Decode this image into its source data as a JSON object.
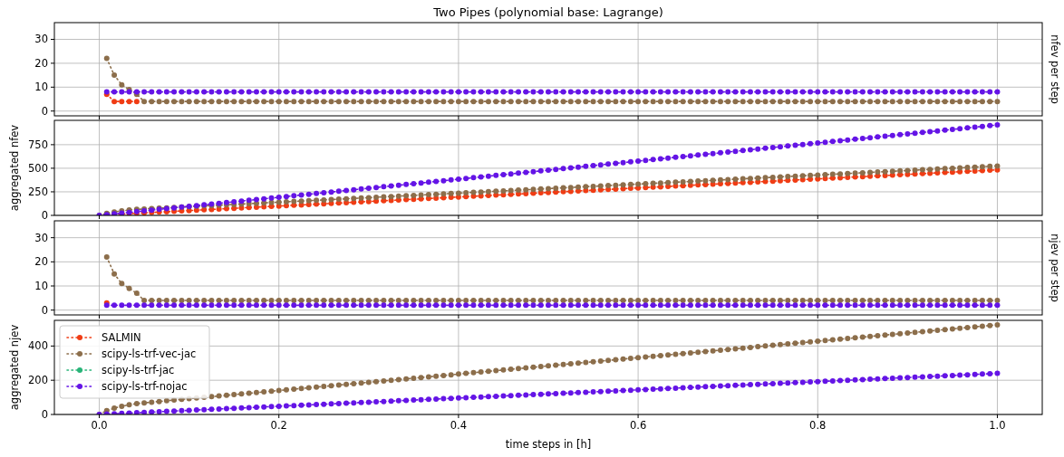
{
  "chart_data": [
    {
      "type": "line",
      "title": "Two Pipes (polynomial base: Lagrange)",
      "y2label": "nfev per step",
      "xlim": [
        -0.05,
        1.05
      ],
      "xticks": [
        0,
        0.2,
        0.4,
        0.6,
        0.8,
        1
      ],
      "ylim": [
        -2,
        37
      ],
      "yticks": [
        0,
        10,
        20,
        30
      ],
      "grid": true,
      "marker": "circle",
      "line_style": "dotted",
      "tick_labels": "y",
      "x": [
        0.0083,
        0.0167,
        0.025,
        0.0333,
        0.0417,
        0.05,
        0.0583,
        0.0667,
        0.075,
        0.0833,
        0.0917,
        0.1,
        0.1083,
        0.1167,
        0.125,
        0.1333,
        0.1417,
        0.15,
        0.1583,
        0.1667,
        0.175,
        0.1833,
        0.1917,
        0.2,
        0.2083,
        0.2167,
        0.225,
        0.2333,
        0.2417,
        0.25,
        0.2583,
        0.2667,
        0.275,
        0.2833,
        0.2917,
        0.3,
        0.3083,
        0.3167,
        0.325,
        0.3333,
        0.3417,
        0.35,
        0.3583,
        0.3667,
        0.375,
        0.3833,
        0.3917,
        0.4,
        0.4083,
        0.4167,
        0.425,
        0.4333,
        0.4417,
        0.45,
        0.4583,
        0.4667,
        0.475,
        0.4833,
        0.4917,
        0.5,
        0.5083,
        0.5167,
        0.525,
        0.5333,
        0.5417,
        0.55,
        0.5583,
        0.5667,
        0.575,
        0.5833,
        0.5917,
        0.6,
        0.6083,
        0.6167,
        0.625,
        0.6333,
        0.6417,
        0.65,
        0.6583,
        0.6667,
        0.675,
        0.6833,
        0.6917,
        0.7,
        0.7083,
        0.7167,
        0.725,
        0.7333,
        0.7417,
        0.75,
        0.7583,
        0.7667,
        0.775,
        0.7833,
        0.7917,
        0.8,
        0.8083,
        0.8167,
        0.825,
        0.8333,
        0.8417,
        0.85,
        0.8583,
        0.8667,
        0.875,
        0.8833,
        0.8917,
        0.9,
        0.9083,
        0.9167,
        0.925,
        0.9333,
        0.9417,
        0.95,
        0.9583,
        0.9667,
        0.975,
        0.9833,
        0.9917,
        1
      ],
      "series": [
        {
          "color": "#f03c14",
          "values": [
            7,
            4,
            4,
            4,
            4,
            null,
            null,
            null,
            null,
            null,
            null,
            null,
            null,
            null,
            null,
            null,
            null,
            null,
            null,
            null,
            null,
            null,
            null,
            null,
            null,
            null,
            null,
            null,
            null,
            null,
            null,
            null,
            null,
            null,
            null,
            null,
            null,
            null,
            null,
            null,
            null,
            null,
            null,
            null,
            null,
            null,
            null,
            null,
            null,
            null,
            null,
            null,
            null,
            null,
            null,
            null,
            null,
            null,
            null,
            null,
            null,
            null,
            null,
            null,
            null,
            null,
            null,
            null,
            null,
            null,
            null,
            null,
            null,
            null,
            null,
            null,
            null,
            null,
            null,
            null,
            null,
            null,
            null,
            null,
            null,
            null,
            null,
            null,
            null,
            null,
            null,
            null,
            null,
            null,
            null,
            null,
            null,
            null,
            null,
            null,
            null,
            null,
            null,
            null,
            null,
            null,
            null,
            null,
            null,
            null,
            null,
            null,
            null,
            null,
            null,
            null,
            null,
            null,
            null,
            null
          ]
        },
        {
          "color": "#8c6e4b",
          "values": [
            22,
            15,
            11,
            9,
            7,
            4,
            4,
            4,
            4,
            4,
            4,
            4,
            4,
            4,
            4,
            4,
            4,
            4,
            4,
            4,
            4,
            4,
            4,
            4,
            4,
            4,
            4,
            4,
            4,
            4,
            4,
            4,
            4,
            4,
            4,
            4,
            4,
            4,
            4,
            4,
            4,
            4,
            4,
            4,
            4,
            4,
            4,
            4,
            4,
            4,
            4,
            4,
            4,
            4,
            4,
            4,
            4,
            4,
            4,
            4,
            4,
            4,
            4,
            4,
            4,
            4,
            4,
            4,
            4,
            4,
            4,
            4,
            4,
            4,
            4,
            4,
            4,
            4,
            4,
            4,
            4,
            4,
            4,
            4,
            4,
            4,
            4,
            4,
            4,
            4,
            4,
            4,
            4,
            4,
            4,
            4,
            4,
            4,
            4,
            4,
            4,
            4,
            4,
            4,
            4,
            4,
            4,
            4,
            4,
            4,
            4,
            4,
            4,
            4,
            4,
            4,
            4,
            4,
            4,
            4
          ]
        },
        {
          "color": "#6414e6",
          "values": [
            8,
            8,
            8,
            8,
            8,
            8,
            8,
            8,
            8,
            8,
            8,
            8,
            8,
            8,
            8,
            8,
            8,
            8,
            8,
            8,
            8,
            8,
            8,
            8,
            8,
            8,
            8,
            8,
            8,
            8,
            8,
            8,
            8,
            8,
            8,
            8,
            8,
            8,
            8,
            8,
            8,
            8,
            8,
            8,
            8,
            8,
            8,
            8,
            8,
            8,
            8,
            8,
            8,
            8,
            8,
            8,
            8,
            8,
            8,
            8,
            8,
            8,
            8,
            8,
            8,
            8,
            8,
            8,
            8,
            8,
            8,
            8,
            8,
            8,
            8,
            8,
            8,
            8,
            8,
            8,
            8,
            8,
            8,
            8,
            8,
            8,
            8,
            8,
            8,
            8,
            8,
            8,
            8,
            8,
            8,
            8,
            8,
            8,
            8,
            8,
            8,
            8,
            8,
            8,
            8,
            8,
            8,
            8,
            8,
            8,
            8,
            8,
            8,
            8,
            8,
            8,
            8,
            8,
            8,
            8
          ]
        }
      ]
    },
    {
      "type": "line",
      "ylabel": "aggregated nfev",
      "xlim": [
        -0.05,
        1.05
      ],
      "xticks": [
        0,
        0.2,
        0.4,
        0.6,
        0.8,
        1
      ],
      "ylim": [
        0,
        1008
      ],
      "yticks": [
        0,
        250,
        500,
        750
      ],
      "grid": true,
      "marker": "circle",
      "line_style": "dotted",
      "tick_labels": "y",
      "x": [
        0,
        0.0083,
        0.0167,
        0.025,
        0.0333,
        0.0417,
        0.05,
        0.0583,
        0.0667,
        0.075,
        0.0833,
        0.0917,
        0.1,
        0.1083,
        0.1167,
        0.125,
        0.1333,
        0.1417,
        0.15,
        0.1583,
        0.1667,
        0.175,
        0.1833,
        0.1917,
        0.2,
        0.2083,
        0.2167,
        0.225,
        0.2333,
        0.2417,
        0.25,
        0.2583,
        0.2667,
        0.275,
        0.2833,
        0.2917,
        0.3,
        0.3083,
        0.3167,
        0.325,
        0.3333,
        0.3417,
        0.35,
        0.3583,
        0.3667,
        0.375,
        0.3833,
        0.3917,
        0.4,
        0.4083,
        0.4167,
        0.425,
        0.4333,
        0.4417,
        0.45,
        0.4583,
        0.4667,
        0.475,
        0.4833,
        0.4917,
        0.5,
        0.5083,
        0.5167,
        0.525,
        0.5333,
        0.5417,
        0.55,
        0.5583,
        0.5667,
        0.575,
        0.5833,
        0.5917,
        0.6,
        0.6083,
        0.6167,
        0.625,
        0.6333,
        0.6417,
        0.65,
        0.6583,
        0.6667,
        0.675,
        0.6833,
        0.6917,
        0.7,
        0.7083,
        0.7167,
        0.725,
        0.7333,
        0.7417,
        0.75,
        0.7583,
        0.7667,
        0.775,
        0.7833,
        0.7917,
        0.8,
        0.8083,
        0.8167,
        0.825,
        0.8333,
        0.8417,
        0.85,
        0.8583,
        0.8667,
        0.875,
        0.8833,
        0.8917,
        0.9,
        0.9083,
        0.9167,
        0.925,
        0.9333,
        0.9417,
        0.95,
        0.9583,
        0.9667,
        0.975,
        0.9833,
        0.9917,
        1
      ],
      "series": [
        {
          "color": "#f03c14",
          "values": [
            null,
            null,
            11,
            15,
            19,
            23,
            27,
            31,
            35,
            39,
            43,
            47,
            51,
            55,
            59,
            63,
            67,
            71,
            75,
            79,
            83,
            87,
            91,
            95,
            99,
            103,
            107,
            111,
            115,
            119,
            123,
            127,
            131,
            135,
            139,
            143,
            147,
            151,
            155,
            159,
            163,
            167,
            171,
            175,
            179,
            183,
            187,
            191,
            195,
            199,
            203,
            207,
            211,
            215,
            219,
            223,
            227,
            231,
            235,
            239,
            243,
            247,
            251,
            255,
            259,
            263,
            267,
            271,
            275,
            279,
            283,
            287,
            291,
            295,
            299,
            303,
            307,
            311,
            315,
            319,
            323,
            327,
            331,
            335,
            339,
            343,
            347,
            351,
            355,
            359,
            363,
            367,
            371,
            375,
            379,
            383,
            387,
            391,
            395,
            399,
            403,
            407,
            411,
            415,
            419,
            423,
            427,
            431,
            435,
            439,
            443,
            447,
            451,
            455,
            459,
            463,
            467,
            471,
            475,
            479,
            483
          ]
        },
        {
          "color": "#8c6e4b",
          "values": [
            0,
            22,
            37,
            48,
            57,
            64,
            68,
            72,
            76,
            80,
            84,
            88,
            92,
            96,
            100,
            104,
            108,
            112,
            116,
            120,
            124,
            128,
            132,
            136,
            140,
            144,
            148,
            152,
            156,
            160,
            164,
            168,
            172,
            176,
            180,
            184,
            188,
            192,
            196,
            200,
            204,
            208,
            212,
            216,
            220,
            224,
            228,
            232,
            236,
            240,
            244,
            248,
            252,
            256,
            260,
            264,
            268,
            272,
            276,
            280,
            284,
            288,
            292,
            296,
            300,
            304,
            308,
            312,
            316,
            320,
            324,
            328,
            332,
            336,
            340,
            344,
            348,
            352,
            356,
            360,
            364,
            368,
            372,
            376,
            380,
            384,
            388,
            392,
            396,
            400,
            404,
            408,
            412,
            416,
            420,
            424,
            428,
            432,
            436,
            440,
            444,
            448,
            452,
            456,
            460,
            464,
            468,
            472,
            476,
            480,
            484,
            488,
            492,
            496,
            500,
            504,
            508,
            512,
            516,
            520,
            524
          ]
        },
        {
          "color": "#6414e6",
          "values": [
            0,
            8,
            16,
            24,
            32,
            40,
            48,
            56,
            64,
            72,
            80,
            88,
            96,
            104,
            112,
            120,
            128,
            136,
            144,
            152,
            160,
            168,
            176,
            184,
            192,
            200,
            208,
            216,
            224,
            232,
            240,
            248,
            256,
            264,
            272,
            280,
            288,
            296,
            304,
            312,
            320,
            328,
            336,
            344,
            352,
            360,
            368,
            376,
            384,
            392,
            400,
            408,
            416,
            424,
            432,
            440,
            448,
            456,
            464,
            472,
            480,
            488,
            496,
            504,
            512,
            520,
            528,
            536,
            544,
            552,
            560,
            568,
            576,
            584,
            592,
            600,
            608,
            616,
            624,
            632,
            640,
            648,
            656,
            664,
            672,
            680,
            688,
            696,
            704,
            712,
            720,
            728,
            736,
            744,
            752,
            760,
            768,
            776,
            784,
            792,
            800,
            808,
            816,
            824,
            832,
            840,
            848,
            856,
            864,
            872,
            880,
            888,
            896,
            904,
            912,
            920,
            928,
            936,
            944,
            952,
            960
          ]
        }
      ]
    },
    {
      "type": "line",
      "y2label": "njev per step",
      "xlim": [
        -0.05,
        1.05
      ],
      "xticks": [
        0,
        0.2,
        0.4,
        0.6,
        0.8,
        1
      ],
      "ylim": [
        -2,
        37
      ],
      "yticks": [
        0,
        10,
        20,
        30
      ],
      "grid": true,
      "marker": "circle",
      "line_style": "dotted",
      "tick_labels": "y",
      "x": [
        0.0083,
        0.0167,
        0.025,
        0.0333,
        0.0417,
        0.05,
        0.0583,
        0.0667,
        0.075,
        0.0833,
        0.0917,
        0.1,
        0.1083,
        0.1167,
        0.125,
        0.1333,
        0.1417,
        0.15,
        0.1583,
        0.1667,
        0.175,
        0.1833,
        0.1917,
        0.2,
        0.2083,
        0.2167,
        0.225,
        0.2333,
        0.2417,
        0.25,
        0.2583,
        0.2667,
        0.275,
        0.2833,
        0.2917,
        0.3,
        0.3083,
        0.3167,
        0.325,
        0.3333,
        0.3417,
        0.35,
        0.3583,
        0.3667,
        0.375,
        0.3833,
        0.3917,
        0.4,
        0.4083,
        0.4167,
        0.425,
        0.4333,
        0.4417,
        0.45,
        0.4583,
        0.4667,
        0.475,
        0.4833,
        0.4917,
        0.5,
        0.5083,
        0.5167,
        0.525,
        0.5333,
        0.5417,
        0.55,
        0.5583,
        0.5667,
        0.575,
        0.5833,
        0.5917,
        0.6,
        0.6083,
        0.6167,
        0.625,
        0.6333,
        0.6417,
        0.65,
        0.6583,
        0.6667,
        0.675,
        0.6833,
        0.6917,
        0.7,
        0.7083,
        0.7167,
        0.725,
        0.7333,
        0.7417,
        0.75,
        0.7583,
        0.7667,
        0.775,
        0.7833,
        0.7917,
        0.8,
        0.8083,
        0.8167,
        0.825,
        0.8333,
        0.8417,
        0.85,
        0.8583,
        0.8667,
        0.875,
        0.8833,
        0.8917,
        0.9,
        0.9083,
        0.9167,
        0.925,
        0.9333,
        0.9417,
        0.95,
        0.9583,
        0.9667,
        0.975,
        0.9833,
        0.9917,
        1
      ],
      "series": [
        {
          "color": "#f03c14",
          "values": [
            3,
            null,
            null,
            null,
            null,
            null,
            null,
            null,
            null,
            null,
            null,
            null,
            null,
            null,
            null,
            null,
            null,
            null,
            null,
            null,
            null,
            null,
            null,
            null,
            null,
            null,
            null,
            null,
            null,
            null,
            null,
            null,
            null,
            null,
            null,
            null,
            null,
            null,
            null,
            null,
            null,
            null,
            null,
            null,
            null,
            null,
            null,
            null,
            null,
            null,
            null,
            null,
            null,
            null,
            null,
            null,
            null,
            null,
            null,
            null,
            null,
            null,
            null,
            null,
            null,
            null,
            null,
            null,
            null,
            null,
            null,
            null,
            null,
            null,
            null,
            null,
            null,
            null,
            null,
            null,
            null,
            null,
            null,
            null,
            null,
            null,
            null,
            null,
            null,
            null,
            null,
            null,
            null,
            null,
            null,
            null,
            null,
            null,
            null,
            null,
            null,
            null,
            null,
            null,
            null,
            null,
            null,
            null,
            null,
            null,
            null,
            null,
            null,
            null,
            null,
            null,
            null,
            null,
            null,
            null
          ]
        },
        {
          "color": "#8c6e4b",
          "values": [
            22,
            15,
            11,
            9,
            7,
            4,
            4,
            4,
            4,
            4,
            4,
            4,
            4,
            4,
            4,
            4,
            4,
            4,
            4,
            4,
            4,
            4,
            4,
            4,
            4,
            4,
            4,
            4,
            4,
            4,
            4,
            4,
            4,
            4,
            4,
            4,
            4,
            4,
            4,
            4,
            4,
            4,
            4,
            4,
            4,
            4,
            4,
            4,
            4,
            4,
            4,
            4,
            4,
            4,
            4,
            4,
            4,
            4,
            4,
            4,
            4,
            4,
            4,
            4,
            4,
            4,
            4,
            4,
            4,
            4,
            4,
            4,
            4,
            4,
            4,
            4,
            4,
            4,
            4,
            4,
            4,
            4,
            4,
            4,
            4,
            4,
            4,
            4,
            4,
            4,
            4,
            4,
            4,
            4,
            4,
            4,
            4,
            4,
            4,
            4,
            4,
            4,
            4,
            4,
            4,
            4,
            4,
            4,
            4,
            4,
            4,
            4,
            4,
            4,
            4,
            4,
            4,
            4,
            4,
            4
          ]
        },
        {
          "color": "#6414e6",
          "values": [
            2,
            2,
            2,
            2,
            2,
            2,
            2,
            2,
            2,
            2,
            2,
            2,
            2,
            2,
            2,
            2,
            2,
            2,
            2,
            2,
            2,
            2,
            2,
            2,
            2,
            2,
            2,
            2,
            2,
            2,
            2,
            2,
            2,
            2,
            2,
            2,
            2,
            2,
            2,
            2,
            2,
            2,
            2,
            2,
            2,
            2,
            2,
            2,
            2,
            2,
            2,
            2,
            2,
            2,
            2,
            2,
            2,
            2,
            2,
            2,
            2,
            2,
            2,
            2,
            2,
            2,
            2,
            2,
            2,
            2,
            2,
            2,
            2,
            2,
            2,
            2,
            2,
            2,
            2,
            2,
            2,
            2,
            2,
            2,
            2,
            2,
            2,
            2,
            2,
            2,
            2,
            2,
            2,
            2,
            2,
            2,
            2,
            2,
            2,
            2,
            2,
            2,
            2,
            2,
            2,
            2,
            2,
            2,
            2,
            2,
            2,
            2,
            2,
            2,
            2,
            2,
            2,
            2,
            2,
            2
          ]
        }
      ]
    },
    {
      "type": "line",
      "ylabel": "aggregated njev",
      "xlabel": "time steps in [h]",
      "xlim": [
        -0.05,
        1.05
      ],
      "xticks": [
        {
          "value": 0,
          "label": "0.0"
        },
        {
          "value": 0.2,
          "label": "0.2"
        },
        {
          "value": 0.4,
          "label": "0.4"
        },
        {
          "value": 0.6,
          "label": "0.6"
        },
        {
          "value": 0.8,
          "label": "0.8"
        },
        {
          "value": 1,
          "label": "1.0"
        }
      ],
      "ylim": [
        0,
        550
      ],
      "yticks": [
        0,
        200,
        400
      ],
      "grid": true,
      "marker": "circle",
      "line_style": "dotted",
      "legend": "top left",
      "x": [
        0,
        0.0083,
        0.0167,
        0.025,
        0.0333,
        0.0417,
        0.05,
        0.0583,
        0.0667,
        0.075,
        0.0833,
        0.0917,
        0.1,
        0.1083,
        0.1167,
        0.125,
        0.1333,
        0.1417,
        0.15,
        0.1583,
        0.1667,
        0.175,
        0.1833,
        0.1917,
        0.2,
        0.2083,
        0.2167,
        0.225,
        0.2333,
        0.2417,
        0.25,
        0.2583,
        0.2667,
        0.275,
        0.2833,
        0.2917,
        0.3,
        0.3083,
        0.3167,
        0.325,
        0.3333,
        0.3417,
        0.35,
        0.3583,
        0.3667,
        0.375,
        0.3833,
        0.3917,
        0.4,
        0.4083,
        0.4167,
        0.425,
        0.4333,
        0.4417,
        0.45,
        0.4583,
        0.4667,
        0.475,
        0.4833,
        0.4917,
        0.5,
        0.5083,
        0.5167,
        0.525,
        0.5333,
        0.5417,
        0.55,
        0.5583,
        0.5667,
        0.575,
        0.5833,
        0.5917,
        0.6,
        0.6083,
        0.6167,
        0.625,
        0.6333,
        0.6417,
        0.65,
        0.6583,
        0.6667,
        0.675,
        0.6833,
        0.6917,
        0.7,
        0.7083,
        0.7167,
        0.725,
        0.7333,
        0.7417,
        0.75,
        0.7583,
        0.7667,
        0.775,
        0.7833,
        0.7917,
        0.8,
        0.8083,
        0.8167,
        0.825,
        0.8333,
        0.8417,
        0.85,
        0.8583,
        0.8667,
        0.875,
        0.8833,
        0.8917,
        0.9,
        0.9083,
        0.9167,
        0.925,
        0.9333,
        0.9417,
        0.95,
        0.9583,
        0.9667,
        0.975,
        0.9833,
        0.9917,
        1
      ],
      "series": [
        {
          "name": "SALMIN",
          "color": "#f03c14",
          "values": [
            null,
            null,
            null,
            null,
            null,
            null,
            null,
            null,
            null,
            null,
            null,
            null,
            null,
            null,
            null,
            null,
            null,
            null,
            null,
            null,
            null,
            null,
            null,
            null,
            null,
            null,
            null,
            null,
            null,
            null,
            null,
            null,
            null,
            null,
            null,
            null,
            null,
            null,
            null,
            null,
            null,
            null,
            null,
            null,
            null,
            null,
            null,
            null,
            null,
            null,
            null,
            null,
            null,
            null,
            null,
            null,
            null,
            null,
            null,
            null,
            null,
            null,
            null,
            null,
            null,
            null,
            null,
            null,
            null,
            null,
            null,
            null,
            null,
            null,
            null,
            null,
            null,
            null,
            null,
            null,
            null,
            null,
            null,
            null,
            null,
            null,
            null,
            null,
            null,
            null,
            null,
            null,
            null,
            null,
            null,
            null,
            null,
            null,
            null,
            null,
            null,
            null,
            null,
            null,
            null,
            null,
            null,
            null,
            null,
            null,
            null,
            null,
            null,
            null,
            null,
            null,
            null,
            null,
            null,
            null,
            null
          ]
        },
        {
          "name": "scipy-ls-trf-vec-jac",
          "color": "#8c6e4b",
          "values": [
            0,
            22,
            37,
            48,
            57,
            64,
            68,
            72,
            76,
            80,
            84,
            88,
            92,
            96,
            100,
            104,
            108,
            112,
            116,
            120,
            124,
            128,
            132,
            136,
            140,
            144,
            148,
            152,
            156,
            160,
            164,
            168,
            172,
            176,
            180,
            184,
            188,
            192,
            196,
            200,
            204,
            208,
            212,
            216,
            220,
            224,
            228,
            232,
            236,
            240,
            244,
            248,
            252,
            256,
            260,
            264,
            268,
            272,
            276,
            280,
            284,
            288,
            292,
            296,
            300,
            304,
            308,
            312,
            316,
            320,
            324,
            328,
            332,
            336,
            340,
            344,
            348,
            352,
            356,
            360,
            364,
            368,
            372,
            376,
            380,
            384,
            388,
            392,
            396,
            400,
            404,
            408,
            412,
            416,
            420,
            424,
            428,
            432,
            436,
            440,
            444,
            448,
            452,
            456,
            460,
            464,
            468,
            472,
            476,
            480,
            484,
            488,
            492,
            496,
            500,
            504,
            508,
            512,
            516,
            520,
            524
          ]
        },
        {
          "name": "scipy-ls-trf-jac",
          "color": "#28b478",
          "values": [
            null,
            null,
            null,
            null,
            null,
            null,
            null,
            null,
            null,
            null,
            null,
            null,
            null,
            null,
            null,
            null,
            null,
            null,
            null,
            null,
            null,
            null,
            null,
            null,
            null,
            null,
            null,
            null,
            null,
            null,
            null,
            null,
            null,
            null,
            null,
            null,
            null,
            null,
            null,
            null,
            null,
            null,
            null,
            null,
            null,
            null,
            null,
            null,
            null,
            null,
            null,
            null,
            null,
            null,
            null,
            null,
            null,
            null,
            null,
            null,
            null,
            null,
            null,
            null,
            null,
            null,
            null,
            null,
            null,
            null,
            null,
            null,
            null,
            null,
            null,
            null,
            null,
            null,
            null,
            null,
            null,
            null,
            null,
            null,
            null,
            null,
            null,
            null,
            null,
            null,
            null,
            null,
            null,
            null,
            null,
            null,
            null,
            null,
            null,
            null,
            null,
            null,
            null,
            null,
            null,
            null,
            null,
            null,
            null,
            null,
            null,
            null,
            null,
            null,
            null,
            null,
            null,
            null,
            null,
            null,
            null
          ]
        },
        {
          "name": "scipy-ls-trf-nojac",
          "color": "#6414e6",
          "values": [
            0,
            2,
            4,
            6,
            8,
            10,
            12,
            14,
            16,
            18,
            20,
            22,
            24,
            26,
            28,
            30,
            32,
            34,
            36,
            38,
            40,
            42,
            44,
            46,
            48,
            50,
            52,
            54,
            56,
            58,
            60,
            62,
            64,
            66,
            68,
            70,
            72,
            74,
            76,
            78,
            80,
            82,
            84,
            86,
            88,
            90,
            92,
            94,
            96,
            98,
            100,
            102,
            104,
            106,
            108,
            110,
            112,
            114,
            116,
            118,
            120,
            122,
            124,
            126,
            128,
            130,
            132,
            134,
            136,
            138,
            140,
            142,
            144,
            146,
            148,
            150,
            152,
            154,
            156,
            158,
            160,
            162,
            164,
            166,
            168,
            170,
            172,
            174,
            176,
            178,
            180,
            182,
            184,
            186,
            188,
            190,
            192,
            194,
            196,
            198,
            200,
            202,
            204,
            206,
            208,
            210,
            212,
            214,
            216,
            218,
            220,
            222,
            224,
            226,
            228,
            230,
            232,
            234,
            236,
            238,
            240
          ]
        }
      ]
    }
  ]
}
